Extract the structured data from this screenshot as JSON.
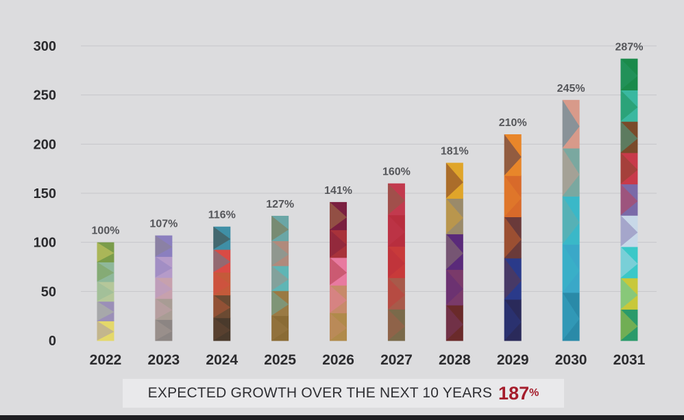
{
  "chart_data": {
    "type": "bar",
    "categories": [
      "2022",
      "2023",
      "2024",
      "2025",
      "2026",
      "2027",
      "2028",
      "2029",
      "2030",
      "2031"
    ],
    "values": [
      100,
      107,
      116,
      127,
      141,
      160,
      181,
      210,
      245,
      287
    ],
    "data_labels": [
      "100%",
      "107%",
      "116%",
      "127%",
      "141%",
      "160%",
      "181%",
      "210%",
      "245%",
      "287%"
    ],
    "yticks": [
      0,
      50,
      100,
      150,
      200,
      250,
      300
    ],
    "ylim": [
      0,
      300
    ],
    "grid": true,
    "title": "",
    "xlabel": "",
    "ylabel": ""
  },
  "caption": {
    "text": "EXPECTED GROWTH OVER THE NEXT 10 YEARS",
    "number": "187",
    "suffix": "%"
  },
  "colors": {
    "background": "#dcdcde",
    "grid": "#c6c6c9",
    "accent": "#a51d2c",
    "bar_palettes": [
      [
        "#e4d86a",
        "#9b8fb8",
        "#b5c79a",
        "#8fb89a",
        "#7a9c4a"
      ],
      [
        "#8c8583",
        "#a89c94",
        "#c7a1ad",
        "#b59bc9",
        "#8b7fbf"
      ],
      [
        "#4a3a2c",
        "#6b4a32",
        "#c45a3a",
        "#d94b45",
        "#3f8fa6"
      ],
      [
        "#8a6b35",
        "#9a7a44",
        "#5fb5b5",
        "#b08a7c",
        "#6aa6a6"
      ],
      [
        "#b08a4a",
        "#c78a6a",
        "#e87aa0",
        "#a8323a",
        "#7a1f40"
      ],
      [
        "#7a6a4a",
        "#a85a4a",
        "#c83a3a",
        "#b82e3e",
        "#c23a4e"
      ],
      [
        "#6a2a2a",
        "#7a3a6a",
        "#5a2a7a",
        "#9a8a6a",
        "#e0a52a"
      ],
      [
        "#2a2a5a",
        "#2a3a8a",
        "#6a3a3a",
        "#d86a2a",
        "#e8862a"
      ],
      [
        "#2a8aa8",
        "#3aa8c8",
        "#3ab8c8",
        "#7aa8a0",
        "#d89a8a"
      ],
      [
        "#2a9a6a",
        "#c8c83a",
        "#3ac8c8",
        "#c8d8e8",
        "#7a6aa8",
        "#c83a4a",
        "#7a4a2a",
        "#3ab8a0",
        "#1a8a4a"
      ]
    ]
  }
}
